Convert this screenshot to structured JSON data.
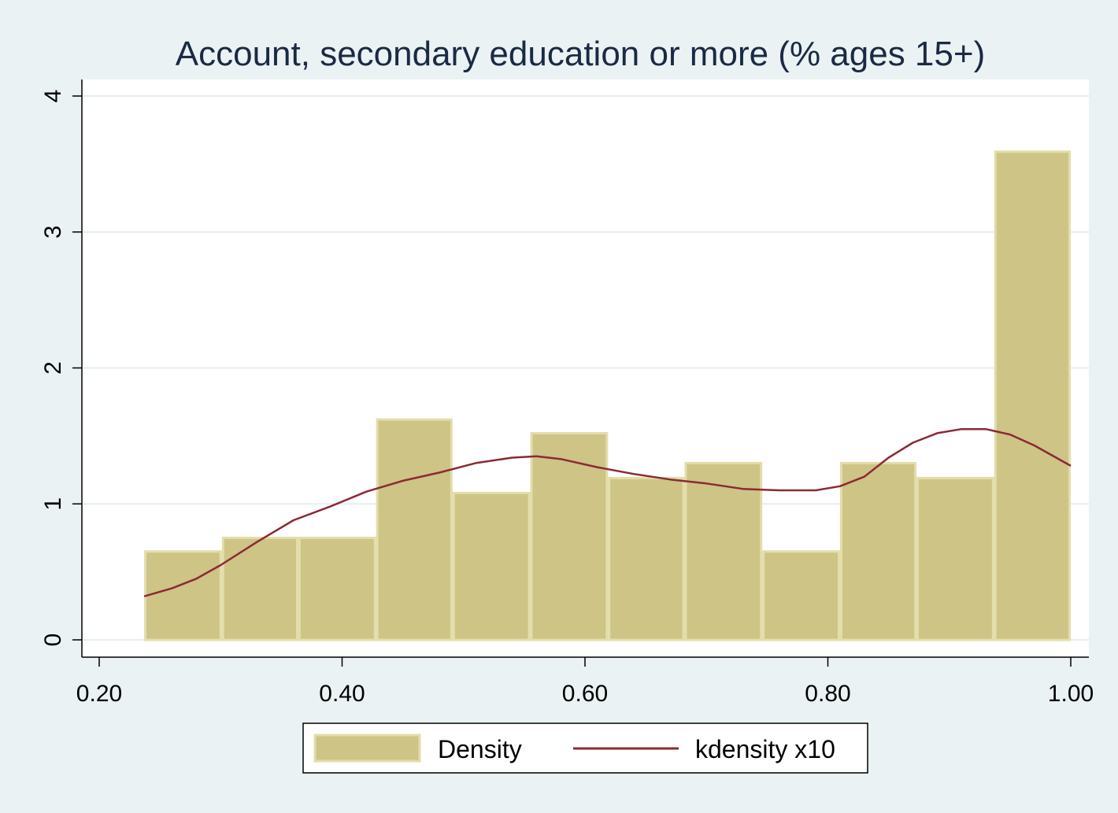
{
  "chart_data": {
    "type": "bar",
    "title": "Account, secondary education or more (% ages 15+)",
    "xlabel": "",
    "ylabel": "",
    "xlim": [
      0.2,
      1.0
    ],
    "ylim": [
      0,
      4
    ],
    "x_ticks": [
      {
        "value": 0.2,
        "label": "0.20"
      },
      {
        "value": 0.4,
        "label": "0.40"
      },
      {
        "value": 0.6,
        "label": "0.60"
      },
      {
        "value": 0.8,
        "label": "0.80"
      },
      {
        "value": 1.0,
        "label": "1.00"
      }
    ],
    "y_ticks": [
      {
        "value": 0,
        "label": "0"
      },
      {
        "value": 1,
        "label": "1"
      },
      {
        "value": 2,
        "label": "2"
      },
      {
        "value": 3,
        "label": "3"
      },
      {
        "value": 4,
        "label": "4"
      }
    ],
    "grid": true,
    "legend_position": "bottom",
    "colors": {
      "bar_fill": "#cdc486",
      "bar_edge": "#e3ddaa",
      "line": "#8b2a35",
      "grid": "#e6eef0",
      "plot_bg": "#ffffff",
      "outer_bg": "#eaf2f3"
    },
    "series": [
      {
        "name": "Density",
        "type": "histogram",
        "bins": [
          {
            "x0": 0.237,
            "x1": 0.301,
            "value": 0.65
          },
          {
            "x0": 0.301,
            "x1": 0.364,
            "value": 0.75
          },
          {
            "x0": 0.364,
            "x1": 0.428,
            "value": 0.75
          },
          {
            "x0": 0.428,
            "x1": 0.491,
            "value": 1.62
          },
          {
            "x0": 0.491,
            "x1": 0.555,
            "value": 1.08
          },
          {
            "x0": 0.555,
            "x1": 0.619,
            "value": 1.52
          },
          {
            "x0": 0.619,
            "x1": 0.682,
            "value": 1.19
          },
          {
            "x0": 0.682,
            "x1": 0.746,
            "value": 1.3
          },
          {
            "x0": 0.746,
            "x1": 0.81,
            "value": 0.65
          },
          {
            "x0": 0.81,
            "x1": 0.873,
            "value": 1.3
          },
          {
            "x0": 0.873,
            "x1": 0.937,
            "value": 1.19
          },
          {
            "x0": 0.937,
            "x1": 1.0,
            "value": 3.59
          }
        ]
      },
      {
        "name": "kdensity x10",
        "type": "line",
        "x": [
          0.237,
          0.26,
          0.28,
          0.3,
          0.33,
          0.36,
          0.39,
          0.42,
          0.45,
          0.48,
          0.51,
          0.54,
          0.56,
          0.58,
          0.61,
          0.64,
          0.67,
          0.7,
          0.73,
          0.76,
          0.79,
          0.81,
          0.83,
          0.85,
          0.87,
          0.89,
          0.91,
          0.93,
          0.95,
          0.97,
          1.0
        ],
        "y": [
          0.32,
          0.38,
          0.45,
          0.55,
          0.72,
          0.88,
          0.98,
          1.09,
          1.17,
          1.23,
          1.3,
          1.34,
          1.35,
          1.33,
          1.27,
          1.22,
          1.18,
          1.15,
          1.11,
          1.1,
          1.1,
          1.13,
          1.2,
          1.34,
          1.45,
          1.52,
          1.55,
          1.55,
          1.51,
          1.43,
          1.28
        ]
      }
    ]
  }
}
